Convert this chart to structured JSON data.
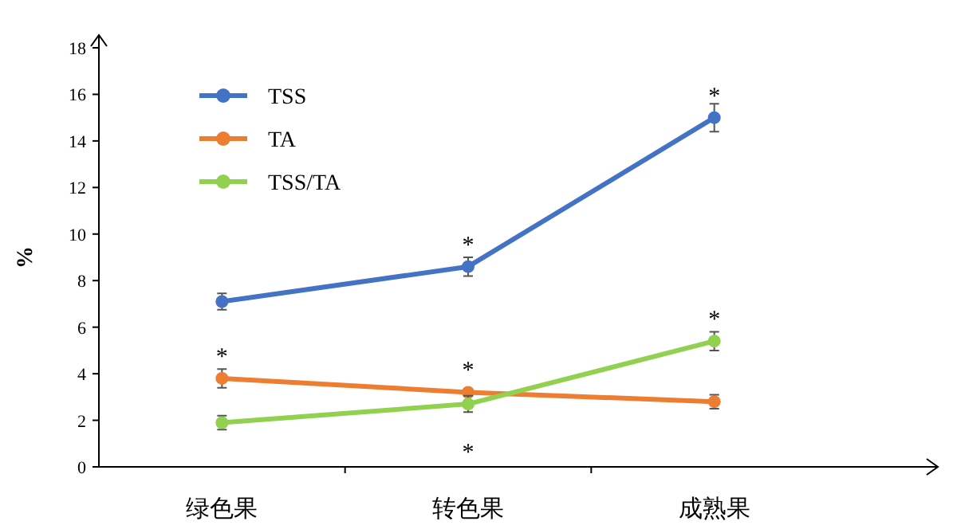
{
  "chart_data": {
    "type": "line",
    "ylabel": "%",
    "categories": [
      "绿色果",
      "转色果",
      "成熟果"
    ],
    "series": [
      {
        "name": "TSS",
        "color": "#4472c4",
        "values": [
          7.1,
          8.6,
          15.0
        ],
        "errors": [
          0.35,
          0.4,
          0.6
        ]
      },
      {
        "name": "TA",
        "color": "#ed7d31",
        "values": [
          3.8,
          3.2,
          2.8
        ],
        "errors": [
          0.4,
          null,
          0.3
        ]
      },
      {
        "name": "TSS/TA",
        "color": "#92d050",
        "values": [
          1.9,
          2.7,
          5.4
        ],
        "errors": [
          0.3,
          0.35,
          0.4
        ]
      }
    ],
    "ylim": [
      0,
      18
    ],
    "yticks": [
      0,
      2,
      4,
      6,
      8,
      10,
      12,
      14,
      16,
      18
    ],
    "grid": false,
    "legend": "top left",
    "marker": "circle",
    "line_style": "solid",
    "annotations": [
      {
        "text": "*",
        "x": "转色果",
        "y": 8.6
      },
      {
        "text": "*",
        "x": "成熟果",
        "y": 15.0
      },
      {
        "text": "*",
        "x": "绿色果",
        "y": 3.8
      },
      {
        "text": "*",
        "x": "转色果",
        "y": 3.2
      },
      {
        "text": "*",
        "x": "转色果",
        "y": 2.7
      },
      {
        "text": "*",
        "x": "成熟果",
        "y": 5.4
      }
    ]
  }
}
